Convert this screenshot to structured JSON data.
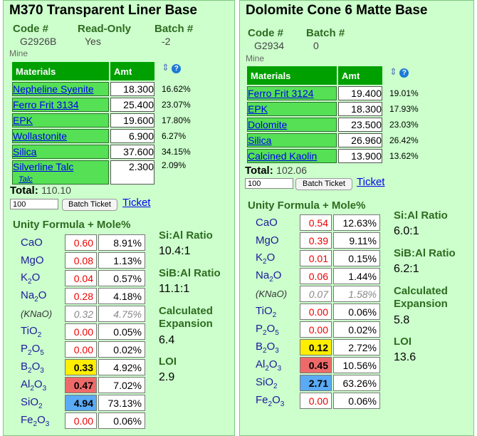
{
  "left": {
    "title": "M370 Transparent Liner Base",
    "code_label": "Code #",
    "code": "G2926B",
    "readonly_label": "Read-Only",
    "readonly": "Yes",
    "batch_label": "Batch #",
    "batch": "-2",
    "mine": "Mine",
    "materials_header": "Materials",
    "amt_header": "Amt",
    "materials": [
      {
        "name": "Nepheline Syenite",
        "amt": "18.300",
        "pct": "16.62%"
      },
      {
        "name": "Ferro Frit 3134",
        "amt": "25.400",
        "pct": "23.07%"
      },
      {
        "name": "EPK",
        "amt": "19.600",
        "pct": "17.80%"
      },
      {
        "name": "Wollastonite",
        "amt": "6.900",
        "pct": "6.27%"
      },
      {
        "name": "Silica",
        "amt": "37.600",
        "pct": "34.15%"
      },
      {
        "name": "Silverline Talc",
        "sub": "Talc",
        "amt": "2.300",
        "pct": "2.09%"
      }
    ],
    "total_label": "Total:",
    "total": "110.10",
    "qty": "100",
    "batch_ticket": "Batch Ticket",
    "ticket": "Ticket",
    "unity_title": "Unity Formula + Mole%",
    "oxides": [
      {
        "base": "CaO",
        "sub": "",
        "tail": "",
        "val": "0.60",
        "pct": "8.91%"
      },
      {
        "base": "MgO",
        "sub": "",
        "tail": "",
        "val": "0.08",
        "pct": "1.13%"
      },
      {
        "base": "K",
        "sub": "2",
        "tail": "O",
        "val": "0.04",
        "pct": "0.57%"
      },
      {
        "base": "Na",
        "sub": "2",
        "tail": "O",
        "val": "0.28",
        "pct": "4.18%"
      },
      {
        "base": "(KNaO)",
        "sub": "",
        "tail": "",
        "val": "0.32",
        "pct": "4.75%"
      },
      {
        "base": "TiO",
        "sub": "2",
        "tail": "",
        "val": "0.00",
        "pct": "0.05%"
      },
      {
        "base": "P",
        "sub": "2",
        "tail": "O5",
        "val": "0.00",
        "pct": "0.02%"
      },
      {
        "base": "B",
        "sub": "2",
        "tail": "O3",
        "val": "0.33",
        "pct": "4.92%"
      },
      {
        "base": "Al",
        "sub": "2",
        "tail": "O3",
        "val": "0.47",
        "pct": "7.02%"
      },
      {
        "base": "SiO",
        "sub": "2",
        "tail": "",
        "val": "4.94",
        "pct": "73.13%"
      },
      {
        "base": "Fe",
        "sub": "2",
        "tail": "O3",
        "val": "0.00",
        "pct": "0.06%"
      }
    ],
    "sial_label": "Si:Al Ratio",
    "sial": "10.4:1",
    "sibal_label": "SiB:Al Ratio",
    "sibal": "11.1:1",
    "exp_label1": "Calculated",
    "exp_label2": "Expansion",
    "expansion": "6.4",
    "loi_label": "LOI",
    "loi": "2.9"
  },
  "right": {
    "title": "Dolomite Cone 6 Matte Base",
    "code_label": "Code #",
    "code": "G2934",
    "batch_label": "Batch #",
    "batch": "0",
    "mine": "Mine",
    "materials_header": "Materials",
    "amt_header": "Amt",
    "materials": [
      {
        "name": "Ferro Frit 3124",
        "amt": "19.400",
        "pct": "19.01%"
      },
      {
        "name": "EPK",
        "amt": "18.300",
        "pct": "17.93%"
      },
      {
        "name": "Dolomite",
        "amt": "23.500",
        "pct": "23.03%"
      },
      {
        "name": "Silica",
        "amt": "26.960",
        "pct": "26.42%"
      },
      {
        "name": "Calcined Kaolin",
        "amt": "13.900",
        "pct": "13.62%"
      }
    ],
    "total_label": "Total:",
    "total": "102.06",
    "qty": "100",
    "batch_ticket": "Batch Ticket",
    "ticket": "Ticket",
    "unity_title": "Unity Formula + Mole%",
    "oxides": [
      {
        "base": "CaO",
        "sub": "",
        "tail": "",
        "val": "0.54",
        "pct": "12.63%"
      },
      {
        "base": "MgO",
        "sub": "",
        "tail": "",
        "val": "0.39",
        "pct": "9.11%"
      },
      {
        "base": "K",
        "sub": "2",
        "tail": "O",
        "val": "0.01",
        "pct": "0.15%"
      },
      {
        "base": "Na",
        "sub": "2",
        "tail": "O",
        "val": "0.06",
        "pct": "1.44%"
      },
      {
        "base": "(KNaO)",
        "sub": "",
        "tail": "",
        "val": "0.07",
        "pct": "1.58%"
      },
      {
        "base": "TiO",
        "sub": "2",
        "tail": "",
        "val": "0.00",
        "pct": "0.06%"
      },
      {
        "base": "P",
        "sub": "2",
        "tail": "O5",
        "val": "0.00",
        "pct": "0.02%"
      },
      {
        "base": "B",
        "sub": "2",
        "tail": "O3",
        "val": "0.12",
        "pct": "2.72%"
      },
      {
        "base": "Al",
        "sub": "2",
        "tail": "O3",
        "val": "0.45",
        "pct": "10.56%"
      },
      {
        "base": "SiO",
        "sub": "2",
        "tail": "",
        "val": "2.71",
        "pct": "63.26%"
      },
      {
        "base": "Fe",
        "sub": "2",
        "tail": "O3",
        "val": "0.00",
        "pct": "0.06%"
      }
    ],
    "sial_label": "Si:Al Ratio",
    "sial": "6.0:1",
    "sibal_label": "SiB:Al Ratio",
    "sibal": "6.2:1",
    "exp_label1": "Calculated",
    "exp_label2": "Expansion",
    "expansion": "5.8",
    "loi_label": "LOI",
    "loi": "13.6"
  },
  "highlight_colors": {
    "B2O3": "#ffee00",
    "Al2O3": "#ee6a6a",
    "SiO2": "#5aaaf5"
  },
  "icons": {
    "sort": "sort-arrows-icon",
    "help": "help-icon"
  }
}
